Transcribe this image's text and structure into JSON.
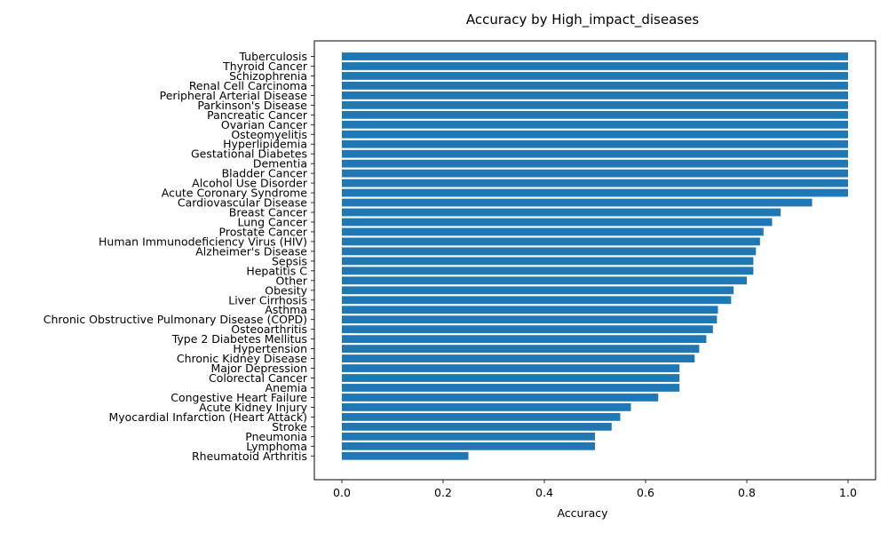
{
  "chart_data": {
    "type": "bar",
    "orientation": "horizontal",
    "title": "Accuracy by High_impact_diseases",
    "xlabel": "Accuracy",
    "ylabel": "",
    "xlim": [
      0,
      1.0
    ],
    "x_ticks": [
      "0.0",
      "0.2",
      "0.4",
      "0.6",
      "0.8",
      "1.0"
    ],
    "grid": false,
    "bar_color": "#1f77b4",
    "categories": [
      "Tuberculosis",
      "Thyroid Cancer",
      "Schizophrenia",
      "Renal Cell Carcinoma",
      "Peripheral Arterial Disease",
      "Parkinson's Disease",
      "Pancreatic Cancer",
      "Ovarian Cancer",
      "Osteomyelitis",
      "Hyperlipidemia",
      "Gestational Diabetes",
      "Dementia",
      "Bladder Cancer",
      "Alcohol Use Disorder",
      "Acute Coronary Syndrome",
      "Cardiovascular Disease",
      "Breast Cancer",
      "Lung Cancer",
      "Prostate Cancer",
      "Human Immunodeficiency Virus (HIV)",
      "Alzheimer's Disease",
      "Sepsis",
      "Hepatitis C",
      "Other",
      "Obesity",
      "Liver Cirrhosis",
      "Asthma",
      "Chronic Obstructive Pulmonary Disease (COPD)",
      "Osteoarthritis",
      "Type 2 Diabetes Mellitus",
      "Hypertension",
      "Chronic Kidney Disease",
      "Major Depression",
      "Colorectal Cancer",
      "Anemia",
      "Congestive Heart Failure",
      "Acute Kidney Injury",
      "Myocardial Infarction (Heart Attack)",
      "Stroke",
      "Pneumonia",
      "Lymphoma",
      "Rheumatoid Arthritis"
    ],
    "values": [
      1.0,
      1.0,
      1.0,
      1.0,
      1.0,
      1.0,
      1.0,
      1.0,
      1.0,
      1.0,
      1.0,
      1.0,
      1.0,
      1.0,
      1.0,
      0.929,
      0.867,
      0.85,
      0.833,
      0.826,
      0.818,
      0.813,
      0.813,
      0.8,
      0.774,
      0.769,
      0.743,
      0.741,
      0.733,
      0.72,
      0.706,
      0.697,
      0.667,
      0.667,
      0.667,
      0.625,
      0.571,
      0.55,
      0.533,
      0.5,
      0.5,
      0.25
    ]
  }
}
